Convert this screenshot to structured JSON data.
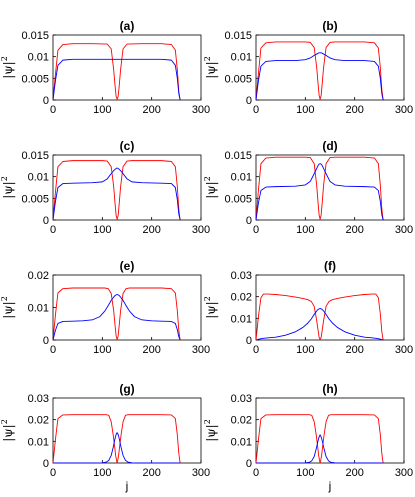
{
  "figure": {
    "line_colors": {
      "red": "#ff0000",
      "blue": "#0000ff"
    }
  },
  "chart_data": [
    {
      "type": "line",
      "title": "(a)",
      "xlabel": "",
      "ylabel": "|ψ|2",
      "xlim": [
        0,
        300
      ],
      "ylim": [
        0,
        0.015
      ],
      "xticks": [
        "0",
        "100",
        "200",
        "300"
      ],
      "yticks": [
        "0",
        "0.005",
        "0.01",
        "0.015"
      ],
      "x": [
        0,
        5,
        10,
        20,
        40,
        80,
        110,
        118,
        123,
        126,
        128,
        130,
        132,
        134,
        137,
        142,
        150,
        180,
        220,
        240,
        248,
        252,
        255,
        257,
        258
      ],
      "series": [
        {
          "color": "#ff0000",
          "values": [
            0,
            0.006,
            0.0115,
            0.0128,
            0.013,
            0.013,
            0.0129,
            0.0118,
            0.007,
            0.003,
            0.0008,
            0.0002,
            0.0008,
            0.003,
            0.007,
            0.0118,
            0.0129,
            0.013,
            0.013,
            0.0128,
            0.0115,
            0.007,
            0.002,
            0.0005,
            0
          ]
        },
        {
          "color": "#0000ff",
          "values": [
            0,
            0.0045,
            0.008,
            0.0092,
            0.0094,
            0.0094,
            0.0094,
            0.0094,
            0.0094,
            0.0094,
            0.0094,
            0.0094,
            0.0094,
            0.0094,
            0.0094,
            0.0094,
            0.0094,
            0.0094,
            0.0094,
            0.0092,
            0.008,
            0.005,
            0.0015,
            0.0004,
            0
          ]
        }
      ]
    },
    {
      "type": "line",
      "title": "(b)",
      "xlabel": "",
      "ylabel": "|ψ|2",
      "xlim": [
        0,
        300
      ],
      "ylim": [
        0,
        0.015
      ],
      "xticks": [
        "0",
        "100",
        "200",
        "300"
      ],
      "yticks": [
        "0",
        "0.005",
        "0.01",
        "0.015"
      ],
      "x": [
        0,
        5,
        10,
        20,
        40,
        80,
        100,
        110,
        118,
        123,
        126,
        128,
        130,
        132,
        134,
        137,
        142,
        150,
        160,
        180,
        220,
        240,
        248,
        252,
        255,
        257,
        258
      ],
      "series": [
        {
          "color": "#ff0000",
          "values": [
            0,
            0.0063,
            0.012,
            0.0132,
            0.0134,
            0.0134,
            0.0134,
            0.0133,
            0.0121,
            0.0075,
            0.0035,
            0.001,
            0.0002,
            0.001,
            0.0035,
            0.0075,
            0.0121,
            0.0133,
            0.0134,
            0.0134,
            0.0134,
            0.0132,
            0.012,
            0.0075,
            0.0025,
            0.0006,
            0
          ]
        },
        {
          "color": "#0000ff",
          "values": [
            0,
            0.0045,
            0.0078,
            0.0089,
            0.0091,
            0.0091,
            0.0093,
            0.0097,
            0.0103,
            0.0106,
            0.0108,
            0.0109,
            0.0109,
            0.0109,
            0.0108,
            0.0106,
            0.0103,
            0.0097,
            0.0093,
            0.0091,
            0.0091,
            0.0089,
            0.0078,
            0.005,
            0.0015,
            0.0004,
            0
          ]
        }
      ]
    },
    {
      "type": "line",
      "title": "(c)",
      "xlabel": "",
      "ylabel": "|ψ|2",
      "xlim": [
        0,
        300
      ],
      "ylim": [
        0,
        0.015
      ],
      "xticks": [
        "0",
        "100",
        "200",
        "300"
      ],
      "yticks": [
        "0",
        "0.005",
        "0.01",
        "0.015"
      ],
      "x": [
        0,
        5,
        10,
        20,
        40,
        80,
        100,
        110,
        118,
        123,
        126,
        128,
        130,
        132,
        134,
        137,
        142,
        150,
        160,
        180,
        220,
        240,
        248,
        252,
        255,
        257,
        258
      ],
      "series": [
        {
          "color": "#ff0000",
          "values": [
            0,
            0.0065,
            0.0123,
            0.0135,
            0.0137,
            0.0137,
            0.0137,
            0.0136,
            0.0123,
            0.0077,
            0.0035,
            0.001,
            0.0002,
            0.001,
            0.0035,
            0.0077,
            0.0123,
            0.0136,
            0.0137,
            0.0137,
            0.0137,
            0.0135,
            0.0123,
            0.0077,
            0.0025,
            0.0006,
            0
          ]
        },
        {
          "color": "#0000ff",
          "values": [
            0,
            0.0043,
            0.0075,
            0.0084,
            0.0085,
            0.0086,
            0.0088,
            0.0095,
            0.0107,
            0.0114,
            0.0117,
            0.0119,
            0.012,
            0.0119,
            0.0117,
            0.0114,
            0.0107,
            0.0095,
            0.0088,
            0.0086,
            0.0085,
            0.0084,
            0.0075,
            0.0047,
            0.0014,
            0.0004,
            0
          ]
        }
      ]
    },
    {
      "type": "line",
      "title": "(d)",
      "xlabel": "",
      "ylabel": "|ψ|2",
      "xlim": [
        0,
        300
      ],
      "ylim": [
        0,
        0.015
      ],
      "xticks": [
        "0",
        "100",
        "200",
        "300"
      ],
      "yticks": [
        "0",
        "0.005",
        "0.01",
        "0.015"
      ],
      "x": [
        0,
        5,
        10,
        20,
        40,
        80,
        100,
        110,
        118,
        123,
        126,
        128,
        130,
        132,
        134,
        137,
        142,
        150,
        160,
        180,
        220,
        240,
        248,
        252,
        255,
        257,
        258
      ],
      "series": [
        {
          "color": "#ff0000",
          "values": [
            0,
            0.007,
            0.013,
            0.0143,
            0.0145,
            0.0145,
            0.0145,
            0.0144,
            0.013,
            0.008,
            0.0037,
            0.0011,
            0.0002,
            0.0011,
            0.0037,
            0.008,
            0.013,
            0.0144,
            0.0145,
            0.0145,
            0.0145,
            0.0143,
            0.013,
            0.008,
            0.0027,
            0.0006,
            0
          ]
        },
        {
          "color": "#0000ff",
          "values": [
            0,
            0.004,
            0.0068,
            0.0076,
            0.0077,
            0.0078,
            0.0081,
            0.0089,
            0.0107,
            0.0119,
            0.0126,
            0.0129,
            0.013,
            0.0129,
            0.0126,
            0.0119,
            0.0107,
            0.0089,
            0.0081,
            0.0078,
            0.0077,
            0.0076,
            0.0068,
            0.0043,
            0.0013,
            0.0003,
            0
          ]
        }
      ]
    },
    {
      "type": "line",
      "title": "(e)",
      "xlabel": "",
      "ylabel": "|ψ|2",
      "xlim": [
        0,
        300
      ],
      "ylim": [
        0,
        0.02
      ],
      "xticks": [
        "0",
        "100",
        "200",
        "300"
      ],
      "yticks": [
        "0",
        "0.01",
        "0.02"
      ],
      "x": [
        0,
        5,
        10,
        20,
        40,
        60,
        80,
        95,
        105,
        112,
        118,
        123,
        126,
        128,
        130,
        132,
        134,
        137,
        142,
        148,
        155,
        165,
        180,
        200,
        220,
        240,
        248,
        252,
        255,
        257,
        258
      ],
      "series": [
        {
          "color": "#ff0000",
          "values": [
            0,
            0.0078,
            0.0145,
            0.0158,
            0.016,
            0.016,
            0.016,
            0.016,
            0.016,
            0.0158,
            0.0143,
            0.009,
            0.0042,
            0.0012,
            0.0002,
            0.0012,
            0.0042,
            0.009,
            0.0143,
            0.0158,
            0.016,
            0.016,
            0.016,
            0.016,
            0.016,
            0.0158,
            0.0145,
            0.009,
            0.003,
            0.0007,
            0
          ]
        },
        {
          "color": "#0000ff",
          "values": [
            0,
            0.003,
            0.0051,
            0.0057,
            0.0058,
            0.0059,
            0.0062,
            0.0072,
            0.0089,
            0.0106,
            0.0122,
            0.0132,
            0.0137,
            0.0139,
            0.014,
            0.0139,
            0.0137,
            0.0132,
            0.0122,
            0.0106,
            0.0089,
            0.0072,
            0.0062,
            0.0059,
            0.0058,
            0.0057,
            0.0051,
            0.0032,
            0.001,
            0.0003,
            0
          ]
        }
      ]
    },
    {
      "type": "line",
      "title": "(f)",
      "xlabel": "",
      "ylabel": "|ψ|2",
      "xlim": [
        0,
        300
      ],
      "ylim": [
        0,
        0.03
      ],
      "xticks": [
        "0",
        "100",
        "200",
        "300"
      ],
      "yticks": [
        "0",
        "0.01",
        "0.02",
        "0.03"
      ],
      "x": [
        0,
        5,
        10,
        15,
        25,
        40,
        60,
        80,
        95,
        105,
        112,
        118,
        123,
        126,
        128,
        130,
        132,
        134,
        137,
        142,
        148,
        155,
        165,
        180,
        200,
        220,
        235,
        243,
        248,
        252,
        255,
        257,
        258
      ],
      "series": [
        {
          "color": "#ff0000",
          "values": [
            0,
            0.011,
            0.0195,
            0.0212,
            0.0212,
            0.021,
            0.0205,
            0.0198,
            0.0192,
            0.0186,
            0.0178,
            0.0155,
            0.009,
            0.0042,
            0.0012,
            0.0002,
            0.0012,
            0.0042,
            0.009,
            0.0155,
            0.0178,
            0.0186,
            0.0192,
            0.0198,
            0.0205,
            0.021,
            0.0212,
            0.0212,
            0.0195,
            0.012,
            0.004,
            0.0009,
            0
          ]
        },
        {
          "color": "#0000ff",
          "values": [
            0,
            0.0003,
            0.0006,
            0.0008,
            0.001,
            0.0013,
            0.0022,
            0.0038,
            0.0058,
            0.0078,
            0.0097,
            0.0118,
            0.0134,
            0.0141,
            0.0144,
            0.0145,
            0.0144,
            0.0141,
            0.0134,
            0.0118,
            0.0097,
            0.0078,
            0.0058,
            0.0038,
            0.0022,
            0.0013,
            0.001,
            0.0008,
            0.0006,
            0.0004,
            0.0002,
            0.0001,
            0
          ]
        }
      ]
    },
    {
      "type": "line",
      "title": "(g)",
      "xlabel": "j",
      "ylabel": "|ψ|2",
      "xlim": [
        0,
        300
      ],
      "ylim": [
        0,
        0.03
      ],
      "xticks": [
        "0",
        "100",
        "200",
        "300"
      ],
      "yticks": [
        "0",
        "0.01",
        "0.02",
        "0.03"
      ],
      "x": [
        0,
        5,
        10,
        20,
        40,
        80,
        100,
        108,
        113,
        118,
        122,
        125,
        127,
        129,
        130,
        131,
        133,
        135,
        138,
        142,
        147,
        152,
        160,
        180,
        220,
        240,
        248,
        252,
        255,
        257,
        258
      ],
      "series": [
        {
          "color": "#ff0000",
          "values": [
            0,
            0.011,
            0.0205,
            0.0222,
            0.0223,
            0.0223,
            0.0223,
            0.0223,
            0.022,
            0.019,
            0.013,
            0.0075,
            0.0035,
            0.001,
            0.0002,
            0.001,
            0.0035,
            0.0075,
            0.013,
            0.019,
            0.022,
            0.0223,
            0.0223,
            0.0223,
            0.0223,
            0.0222,
            0.0205,
            0.013,
            0.0045,
            0.001,
            0
          ]
        },
        {
          "color": "#0000ff",
          "values": [
            0,
            0,
            0,
            0,
            0,
            0,
            0.0001,
            0.0004,
            0.0012,
            0.0035,
            0.0072,
            0.0105,
            0.0125,
            0.0137,
            0.014,
            0.0137,
            0.0125,
            0.0105,
            0.0072,
            0.0035,
            0.0012,
            0.0004,
            0.0001,
            0,
            0,
            0,
            0,
            0,
            0,
            0,
            0
          ]
        }
      ]
    },
    {
      "type": "line",
      "title": "(h)",
      "xlabel": "j",
      "ylabel": "|ψ|2",
      "xlim": [
        0,
        300
      ],
      "ylim": [
        0,
        0.03
      ],
      "xticks": [
        "0",
        "100",
        "200",
        "300"
      ],
      "yticks": [
        "0",
        "0.01",
        "0.02",
        "0.03"
      ],
      "x": [
        0,
        5,
        10,
        20,
        40,
        80,
        100,
        108,
        113,
        118,
        122,
        125,
        127,
        129,
        130,
        131,
        133,
        135,
        138,
        142,
        147,
        152,
        160,
        180,
        220,
        240,
        248,
        252,
        255,
        257,
        258
      ],
      "series": [
        {
          "color": "#ff0000",
          "values": [
            0,
            0.011,
            0.0205,
            0.0222,
            0.0223,
            0.0223,
            0.0223,
            0.0223,
            0.022,
            0.019,
            0.013,
            0.0075,
            0.0035,
            0.001,
            0.0002,
            0.001,
            0.0035,
            0.0075,
            0.013,
            0.019,
            0.022,
            0.0223,
            0.0223,
            0.0223,
            0.0223,
            0.0222,
            0.0205,
            0.013,
            0.0045,
            0.001,
            0
          ]
        },
        {
          "color": "#0000ff",
          "values": [
            0,
            0,
            0,
            0,
            0,
            0,
            0.0001,
            0.0003,
            0.001,
            0.003,
            0.0065,
            0.0095,
            0.0114,
            0.0126,
            0.013,
            0.0126,
            0.0114,
            0.0095,
            0.0065,
            0.003,
            0.001,
            0.0003,
            0.0001,
            0,
            0,
            0,
            0,
            0,
            0,
            0,
            0
          ]
        }
      ]
    }
  ]
}
